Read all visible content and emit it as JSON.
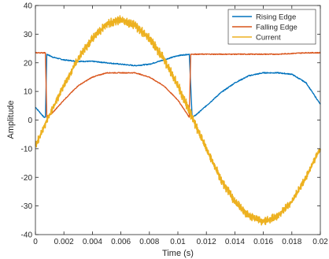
{
  "chart_data": {
    "type": "line",
    "title": "",
    "xlabel": "Time (s)",
    "ylabel": "Amplitude",
    "xlim": [
      0,
      0.02
    ],
    "ylim": [
      -40,
      40
    ],
    "x_ticks": [
      "0",
      "0.002",
      "0.004",
      "0.006",
      "0.008",
      "0.01",
      "0.012",
      "0.014",
      "0.016",
      "0.018",
      "0.02"
    ],
    "y_ticks": [
      "-40",
      "-30",
      "-20",
      "-10",
      "0",
      "10",
      "20",
      "30",
      "40"
    ],
    "legend_position": "top-right",
    "grid": false,
    "colors": {
      "rising_edge": "#0072BD",
      "falling_edge": "#D95319",
      "current": "#EDB120"
    },
    "series": [
      {
        "name": "Rising Edge",
        "color": "#0072BD",
        "x": [
          0,
          0.0006,
          0.0007,
          0.0008,
          0.0012,
          0.002,
          0.003,
          0.004,
          0.005,
          0.006,
          0.007,
          0.008,
          0.009,
          0.01,
          0.0108,
          0.011,
          0.0112,
          0.012,
          0.013,
          0.014,
          0.015,
          0.016,
          0.017,
          0.018,
          0.019,
          0.02
        ],
        "y": [
          4.5,
          1,
          1,
          23,
          22,
          21,
          20.5,
          20.5,
          20,
          19.5,
          19,
          19.5,
          21,
          22.5,
          23,
          1,
          1.5,
          5,
          9.5,
          13,
          15.5,
          16.5,
          16.5,
          16,
          13,
          5.5
        ]
      },
      {
        "name": "Falling Edge",
        "color": "#D95319",
        "x": [
          0,
          0.0007,
          0.0008,
          0.0012,
          0.002,
          0.003,
          0.004,
          0.005,
          0.006,
          0.007,
          0.008,
          0.009,
          0.01,
          0.0108,
          0.0109,
          0.0112,
          0.013,
          0.015,
          0.017,
          0.019,
          0.02
        ],
        "y": [
          23.5,
          23.5,
          1,
          2.5,
          7,
          12,
          15,
          16.5,
          16.5,
          16.5,
          15,
          12,
          7,
          1,
          23,
          23,
          23,
          23,
          23,
          23.5,
          23.5
        ]
      },
      {
        "name": "Current",
        "color": "#EDB120",
        "x": [
          0,
          0.001,
          0.002,
          0.003,
          0.004,
          0.005,
          0.006,
          0.007,
          0.008,
          0.009,
          0.01,
          0.011,
          0.012,
          0.013,
          0.014,
          0.015,
          0.016,
          0.017,
          0.018,
          0.019,
          0.02
        ],
        "y": [
          -9,
          2,
          12,
          21.5,
          28.5,
          33.5,
          35,
          33,
          28.5,
          21.5,
          12,
          1,
          -10,
          -20.5,
          -28.5,
          -33.5,
          -35.5,
          -33.5,
          -28.5,
          -20,
          -10
        ]
      }
    ]
  }
}
